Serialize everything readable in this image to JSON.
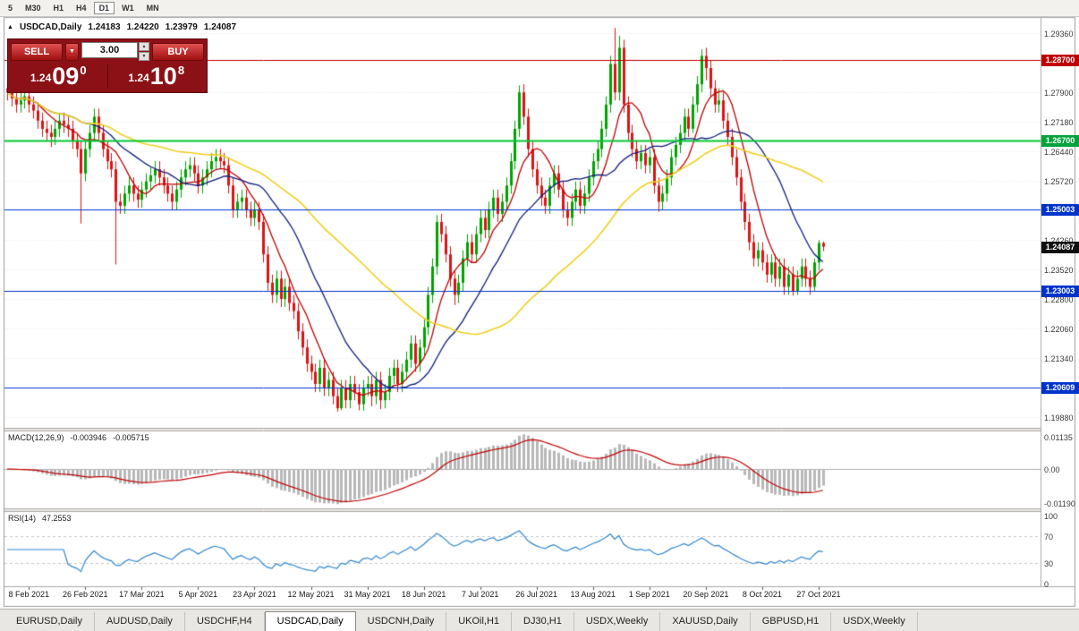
{
  "toolbar": {
    "periods": [
      "5",
      "M30",
      "H1",
      "H4",
      "D1",
      "W1",
      "MN"
    ],
    "active": "D1"
  },
  "icons": {
    "collapse": "▲",
    "dropdown": "▼",
    "spin_up": "▲",
    "spin_down": "▼"
  },
  "chart_header": {
    "symbol": "USDCAD,Daily",
    "open": "1.24183",
    "high": "1.24220",
    "low": "1.23979",
    "close": "1.24087"
  },
  "trade": {
    "sell_label": "SELL",
    "buy_label": "BUY",
    "lot_value": "3.00",
    "bid": {
      "prefix": "1.24",
      "big": "09",
      "sup": "0"
    },
    "ask": {
      "prefix": "1.24",
      "big": "10",
      "sup": "8"
    }
  },
  "price_axis": {
    "ticks": [
      "1.29360",
      "1.27900",
      "1.27180",
      "1.26440",
      "1.25720",
      "1.24260",
      "1.23520",
      "1.22800",
      "1.22060",
      "1.21340",
      "1.19880"
    ]
  },
  "levels": [
    {
      "label": "1.28700",
      "value": 1.287,
      "color": "#c00000",
      "width": 1,
      "badge": "#c00000"
    },
    {
      "label": "1.26700",
      "value": 1.267,
      "color": "#00c832",
      "width": 2,
      "badge": "#00a43a"
    },
    {
      "label": "1.25003",
      "value": 1.25003,
      "color": "#0033cc",
      "width": 1,
      "badge": "#0033cc"
    },
    {
      "label": "1.23003",
      "value": 1.23003,
      "color": "#0033cc",
      "width": 1,
      "badge": "#0033cc"
    },
    {
      "label": "1.20609",
      "value": 1.20609,
      "color": "#0033cc",
      "width": 1,
      "badge": "#0033cc"
    }
  ],
  "current_price": {
    "label": "1.24087",
    "value": 1.24087,
    "color": "#101010"
  },
  "macd_panel": {
    "name": "MACD(12,26,9)",
    "value_main": "-0.003946",
    "value_signal": "-0.005715",
    "ticks": [
      {
        "label": "0.01135",
        "value": 0.01135
      },
      {
        "label": "0.00",
        "value": 0
      },
      {
        "label": "-0.01190",
        "value": -0.0119
      }
    ]
  },
  "rsi_panel": {
    "name": "RSI(14)",
    "value": "47.2553",
    "ticks": [
      {
        "label": "100",
        "value": 100
      },
      {
        "label": "70",
        "value": 70
      },
      {
        "label": "30",
        "value": 30
      },
      {
        "label": "0",
        "value": 0
      }
    ],
    "levels": [
      70,
      30
    ]
  },
  "time_axis": {
    "ticks": [
      {
        "label": "8 Feb 2021",
        "index": 5
      },
      {
        "label": "26 Feb 2021",
        "index": 18
      },
      {
        "label": "17 Mar 2021",
        "index": 31
      },
      {
        "label": "5 Apr 2021",
        "index": 44
      },
      {
        "label": "23 Apr 2021",
        "index": 57
      },
      {
        "label": "12 May 2021",
        "index": 70
      },
      {
        "label": "31 May 2021",
        "index": 83
      },
      {
        "label": "18 Jun 2021",
        "index": 96
      },
      {
        "label": "7 Jul 2021",
        "index": 109
      },
      {
        "label": "26 Jul 2021",
        "index": 122
      },
      {
        "label": "13 Aug 2021",
        "index": 135
      },
      {
        "label": "1 Sep 2021",
        "index": 148
      },
      {
        "label": "20 Sep 2021",
        "index": 161
      },
      {
        "label": "8 Oct 2021",
        "index": 174
      },
      {
        "label": "27 Oct 2021",
        "index": 187
      }
    ]
  },
  "tabs": {
    "items": [
      "EURUSD,Daily",
      "AUDUSD,Daily",
      "USDCHF,H4",
      "USDCAD,Daily",
      "USDCNH,Daily",
      "UKOil,H1",
      "DJ30,H1",
      "USDX,Weekly",
      "XAUUSD,Daily",
      "GBPUSD,H1",
      "USDX,Weekly"
    ],
    "active_index": 3
  },
  "chart_data": {
    "type": "candlestick",
    "symbol": "USDCAD",
    "timeframe": "Daily",
    "ylim": [
      1.1975,
      1.2965
    ],
    "colors": {
      "bull": "#00a400",
      "bear": "#dc1414",
      "ma_fast": "#c00000",
      "ma_mid": "#101c7e",
      "ma_slow": "#f0d020",
      "macd_hist": "#b8b8b8",
      "macd_signal": "#c00000",
      "rsi": "#2f86d2",
      "grid": "#ebebeb"
    },
    "moving_averages": [
      {
        "period": 8,
        "color_key": "ma_fast"
      },
      {
        "period": 20,
        "color_key": "ma_mid"
      },
      {
        "period": 50,
        "color_key": "ma_slow"
      }
    ],
    "macd": {
      "fast": 12,
      "slow": 26,
      "signal": 9,
      "ylim": [
        -0.0131,
        0.0125
      ]
    },
    "rsi": {
      "period": 14,
      "ylim": [
        0,
        100
      ]
    },
    "horizontal_lines": [
      1.287,
      1.267,
      1.25003,
      1.23003,
      1.20609
    ],
    "ohlc": [
      [
        1.28,
        1.282,
        1.277,
        1.279
      ],
      [
        1.279,
        1.281,
        1.2755,
        1.2775
      ],
      [
        1.2775,
        1.2795,
        1.274,
        1.276
      ],
      [
        1.276,
        1.279,
        1.274,
        1.277
      ],
      [
        1.277,
        1.28,
        1.275,
        1.278
      ],
      [
        1.278,
        1.28,
        1.274,
        1.276
      ],
      [
        1.276,
        1.278,
        1.2725,
        1.2745
      ],
      [
        1.2745,
        1.2765,
        1.27,
        1.272
      ],
      [
        1.272,
        1.274,
        1.268,
        1.27
      ],
      [
        1.27,
        1.272,
        1.267,
        1.269
      ],
      [
        1.269,
        1.271,
        1.2655,
        1.268
      ],
      [
        1.268,
        1.272,
        1.266,
        1.27
      ],
      [
        1.27,
        1.274,
        1.268,
        1.272
      ],
      [
        1.272,
        1.274,
        1.269,
        1.271
      ],
      [
        1.271,
        1.273,
        1.268,
        1.27
      ],
      [
        1.27,
        1.272,
        1.265,
        1.267
      ],
      [
        1.267,
        1.269,
        1.263,
        1.265
      ],
      [
        1.265,
        1.267,
        1.2466,
        1.259
      ],
      [
        1.259,
        1.267,
        1.257,
        1.265
      ],
      [
        1.265,
        1.271,
        1.263,
        1.269
      ],
      [
        1.269,
        1.275,
        1.267,
        1.273
      ],
      [
        1.273,
        1.275,
        1.267,
        1.269
      ],
      [
        1.269,
        1.271,
        1.263,
        1.265
      ],
      [
        1.265,
        1.267,
        1.26,
        1.262
      ],
      [
        1.262,
        1.264,
        1.258,
        1.26
      ],
      [
        1.26,
        1.262,
        1.2365,
        1.252
      ],
      [
        1.252,
        1.254,
        1.249,
        1.251
      ],
      [
        1.251,
        1.256,
        1.249,
        1.254
      ],
      [
        1.254,
        1.258,
        1.252,
        1.256
      ],
      [
        1.256,
        1.258,
        1.252,
        1.254
      ],
      [
        1.254,
        1.256,
        1.2505,
        1.2525
      ],
      [
        1.2525,
        1.257,
        1.2505,
        1.255
      ],
      [
        1.255,
        1.259,
        1.253,
        1.257
      ],
      [
        1.257,
        1.2605,
        1.255,
        1.2585
      ],
      [
        1.2585,
        1.262,
        1.2565,
        1.26
      ],
      [
        1.26,
        1.262,
        1.256,
        1.258
      ],
      [
        1.258,
        1.26,
        1.254,
        1.256
      ],
      [
        1.256,
        1.258,
        1.252,
        1.254
      ],
      [
        1.254,
        1.256,
        1.25,
        1.252
      ],
      [
        1.252,
        1.257,
        1.25,
        1.255
      ],
      [
        1.255,
        1.26,
        1.253,
        1.258
      ],
      [
        1.258,
        1.262,
        1.256,
        1.26
      ],
      [
        1.26,
        1.263,
        1.258,
        1.261
      ],
      [
        1.261,
        1.263,
        1.257,
        1.259
      ],
      [
        1.259,
        1.261,
        1.254,
        1.256
      ],
      [
        1.256,
        1.26,
        1.254,
        1.258
      ],
      [
        1.258,
        1.262,
        1.256,
        1.26
      ],
      [
        1.26,
        1.264,
        1.258,
        1.262
      ],
      [
        1.262,
        1.265,
        1.26,
        1.263
      ],
      [
        1.263,
        1.265,
        1.26,
        1.262
      ],
      [
        1.262,
        1.264,
        1.259,
        1.261
      ],
      [
        1.261,
        1.263,
        1.254,
        1.256
      ],
      [
        1.256,
        1.258,
        1.248,
        1.25
      ],
      [
        1.25,
        1.254,
        1.248,
        1.252
      ],
      [
        1.252,
        1.255,
        1.25,
        1.253
      ],
      [
        1.253,
        1.255,
        1.248,
        1.25
      ],
      [
        1.25,
        1.252,
        1.246,
        1.248
      ],
      [
        1.248,
        1.252,
        1.246,
        1.25
      ],
      [
        1.25,
        1.252,
        1.245,
        1.247
      ],
      [
        1.247,
        1.249,
        1.237,
        1.239
      ],
      [
        1.239,
        1.241,
        1.23,
        1.232
      ],
      [
        1.232,
        1.234,
        1.227,
        1.229
      ],
      [
        1.229,
        1.235,
        1.227,
        1.233
      ],
      [
        1.233,
        1.235,
        1.226,
        1.228
      ],
      [
        1.228,
        1.233,
        1.226,
        1.231
      ],
      [
        1.231,
        1.233,
        1.225,
        1.227
      ],
      [
        1.227,
        1.229,
        1.223,
        1.225
      ],
      [
        1.225,
        1.227,
        1.218,
        1.22
      ],
      [
        1.22,
        1.222,
        1.214,
        1.216
      ],
      [
        1.216,
        1.218,
        1.21,
        1.212
      ],
      [
        1.212,
        1.214,
        1.208,
        1.21
      ],
      [
        1.21,
        1.212,
        1.205,
        1.207
      ],
      [
        1.207,
        1.213,
        1.205,
        1.211
      ],
      [
        1.211,
        1.213,
        1.204,
        1.206
      ],
      [
        1.206,
        1.21,
        1.204,
        1.208
      ],
      [
        1.208,
        1.21,
        1.202,
        1.204
      ],
      [
        1.204,
        1.206,
        1.2002,
        1.201
      ],
      [
        1.201,
        1.208,
        1.2005,
        1.206
      ],
      [
        1.206,
        1.208,
        1.201,
        1.203
      ],
      [
        1.203,
        1.209,
        1.201,
        1.207
      ],
      [
        1.207,
        1.209,
        1.203,
        1.205
      ],
      [
        1.205,
        1.207,
        1.2005,
        1.202
      ],
      [
        1.202,
        1.208,
        1.2004,
        1.206
      ],
      [
        1.206,
        1.209,
        1.204,
        1.207
      ],
      [
        1.207,
        1.209,
        1.2015,
        1.204
      ],
      [
        1.204,
        1.21,
        1.202,
        1.208
      ],
      [
        1.208,
        1.21,
        1.2008,
        1.203
      ],
      [
        1.203,
        1.207,
        1.201,
        1.205
      ],
      [
        1.205,
        1.211,
        1.203,
        1.209
      ],
      [
        1.209,
        1.213,
        1.207,
        1.211
      ],
      [
        1.211,
        1.213,
        1.205,
        1.207
      ],
      [
        1.207,
        1.212,
        1.205,
        1.21
      ],
      [
        1.21,
        1.215,
        1.208,
        1.213
      ],
      [
        1.213,
        1.219,
        1.211,
        1.217
      ],
      [
        1.217,
        1.219,
        1.21,
        1.212
      ],
      [
        1.212,
        1.218,
        1.21,
        1.216
      ],
      [
        1.216,
        1.223,
        1.214,
        1.221
      ],
      [
        1.221,
        1.231,
        1.219,
        1.229
      ],
      [
        1.229,
        1.238,
        1.227,
        1.236
      ],
      [
        1.236,
        1.2487,
        1.234,
        1.247
      ],
      [
        1.247,
        1.249,
        1.242,
        1.244
      ],
      [
        1.244,
        1.246,
        1.237,
        1.239
      ],
      [
        1.239,
        1.241,
        1.231,
        1.233
      ],
      [
        1.233,
        1.235,
        1.2265,
        1.229
      ],
      [
        1.229,
        1.234,
        1.227,
        1.232
      ],
      [
        1.232,
        1.24,
        1.23,
        1.238
      ],
      [
        1.238,
        1.244,
        1.236,
        1.242
      ],
      [
        1.242,
        1.244,
        1.237,
        1.239
      ],
      [
        1.239,
        1.246,
        1.237,
        1.244
      ],
      [
        1.244,
        1.25,
        1.242,
        1.248
      ],
      [
        1.248,
        1.25,
        1.243,
        1.245
      ],
      [
        1.245,
        1.252,
        1.243,
        1.25
      ],
      [
        1.25,
        1.255,
        1.248,
        1.253
      ],
      [
        1.253,
        1.255,
        1.247,
        1.249
      ],
      [
        1.249,
        1.254,
        1.247,
        1.252
      ],
      [
        1.252,
        1.258,
        1.25,
        1.256
      ],
      [
        1.256,
        1.264,
        1.254,
        1.262
      ],
      [
        1.262,
        1.272,
        1.26,
        1.27
      ],
      [
        1.27,
        1.2807,
        1.268,
        1.279
      ],
      [
        1.279,
        1.281,
        1.271,
        1.273
      ],
      [
        1.273,
        1.275,
        1.263,
        1.265
      ],
      [
        1.265,
        1.267,
        1.258,
        1.26
      ],
      [
        1.26,
        1.262,
        1.254,
        1.256
      ],
      [
        1.256,
        1.258,
        1.251,
        1.253
      ],
      [
        1.253,
        1.255,
        1.249,
        1.251
      ],
      [
        1.251,
        1.258,
        1.249,
        1.256
      ],
      [
        1.256,
        1.261,
        1.254,
        1.259
      ],
      [
        1.259,
        1.261,
        1.253,
        1.255
      ],
      [
        1.255,
        1.257,
        1.248,
        1.25
      ],
      [
        1.25,
        1.252,
        1.246,
        1.248
      ],
      [
        1.248,
        1.254,
        1.246,
        1.252
      ],
      [
        1.252,
        1.257,
        1.25,
        1.255
      ],
      [
        1.255,
        1.257,
        1.249,
        1.251
      ],
      [
        1.251,
        1.256,
        1.249,
        1.254
      ],
      [
        1.254,
        1.26,
        1.252,
        1.258
      ],
      [
        1.258,
        1.264,
        1.256,
        1.262
      ],
      [
        1.262,
        1.267,
        1.26,
        1.265
      ],
      [
        1.265,
        1.272,
        1.263,
        1.27
      ],
      [
        1.27,
        1.278,
        1.268,
        1.276
      ],
      [
        1.276,
        1.288,
        1.274,
        1.286
      ],
      [
        1.286,
        1.2949,
        1.277,
        1.279
      ],
      [
        1.279,
        1.293,
        1.277,
        1.29
      ],
      [
        1.29,
        1.292,
        1.274,
        1.276
      ],
      [
        1.276,
        1.278,
        1.267,
        1.269
      ],
      [
        1.269,
        1.271,
        1.263,
        1.265
      ],
      [
        1.265,
        1.267,
        1.26,
        1.262
      ],
      [
        1.262,
        1.266,
        1.26,
        1.264
      ],
      [
        1.264,
        1.266,
        1.259,
        1.261
      ],
      [
        1.261,
        1.265,
        1.259,
        1.263
      ],
      [
        1.263,
        1.265,
        1.254,
        1.256
      ],
      [
        1.256,
        1.258,
        1.2495,
        1.252
      ],
      [
        1.252,
        1.256,
        1.25,
        1.254
      ],
      [
        1.254,
        1.26,
        1.252,
        1.258
      ],
      [
        1.258,
        1.265,
        1.256,
        1.263
      ],
      [
        1.263,
        1.268,
        1.261,
        1.266
      ],
      [
        1.266,
        1.271,
        1.264,
        1.269
      ],
      [
        1.269,
        1.275,
        1.267,
        1.273
      ],
      [
        1.273,
        1.275,
        1.268,
        1.27
      ],
      [
        1.27,
        1.278,
        1.269,
        1.276
      ],
      [
        1.276,
        1.283,
        1.274,
        1.281
      ],
      [
        1.281,
        1.2896,
        1.279,
        1.288
      ],
      [
        1.288,
        1.29,
        1.282,
        1.285
      ],
      [
        1.285,
        1.287,
        1.278,
        1.28
      ],
      [
        1.28,
        1.282,
        1.274,
        1.276
      ],
      [
        1.276,
        1.28,
        1.274,
        1.277
      ],
      [
        1.277,
        1.279,
        1.27,
        1.272
      ],
      [
        1.272,
        1.274,
        1.266,
        1.268
      ],
      [
        1.268,
        1.27,
        1.261,
        1.263
      ],
      [
        1.263,
        1.265,
        1.256,
        1.258
      ],
      [
        1.258,
        1.26,
        1.25,
        1.252
      ],
      [
        1.252,
        1.254,
        1.245,
        1.247
      ],
      [
        1.247,
        1.249,
        1.24,
        1.242
      ],
      [
        1.242,
        1.244,
        1.236,
        1.238
      ],
      [
        1.238,
        1.242,
        1.236,
        1.24
      ],
      [
        1.24,
        1.242,
        1.235,
        1.237
      ],
      [
        1.237,
        1.239,
        1.232,
        1.234
      ],
      [
        1.234,
        1.239,
        1.232,
        1.237
      ],
      [
        1.237,
        1.239,
        1.231,
        1.233
      ],
      [
        1.233,
        1.238,
        1.231,
        1.236
      ],
      [
        1.236,
        1.238,
        1.229,
        1.231
      ],
      [
        1.231,
        1.236,
        1.229,
        1.234
      ],
      [
        1.234,
        1.236,
        1.2288,
        1.23
      ],
      [
        1.23,
        1.235,
        1.229,
        1.233
      ],
      [
        1.233,
        1.238,
        1.231,
        1.236
      ],
      [
        1.236,
        1.238,
        1.231,
        1.233
      ],
      [
        1.233,
        1.235,
        1.229,
        1.231
      ],
      [
        1.231,
        1.238,
        1.23,
        1.237
      ],
      [
        1.237,
        1.2425,
        1.235,
        1.2418
      ],
      [
        1.2418,
        1.2422,
        1.2398,
        1.2409
      ]
    ]
  }
}
